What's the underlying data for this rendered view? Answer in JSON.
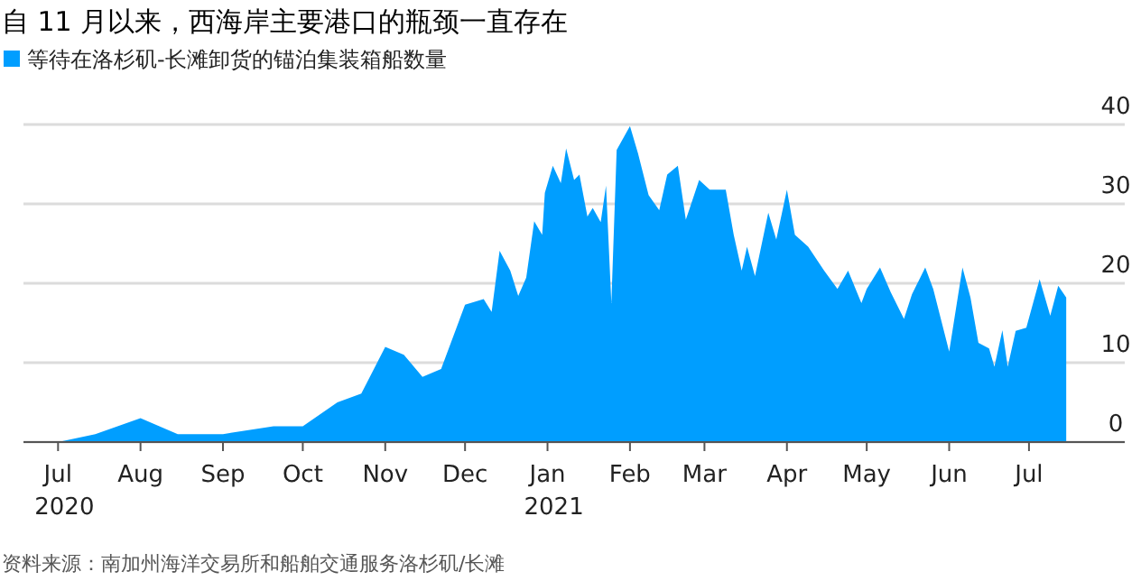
{
  "chart_data": {
    "type": "area",
    "title": "自 11 月以来，西海岸主要港口的瓶颈一直存在",
    "series": [
      {
        "name": "等待在洛杉矶-长滩卸货的锚泊集装箱船数量",
        "color": "#009eff",
        "x": [
          "2020-06-18",
          "2020-07-01",
          "2020-07-15",
          "2020-08-01",
          "2020-08-15",
          "2020-09-01",
          "2020-09-20",
          "2020-10-01",
          "2020-10-14",
          "2020-10-23",
          "2020-11-01",
          "2020-11-08",
          "2020-11-15",
          "2020-11-22",
          "2020-12-01",
          "2020-12-08",
          "2020-12-11",
          "2020-12-14",
          "2020-12-18",
          "2020-12-21",
          "2020-12-24",
          "2020-12-27",
          "2020-12-30",
          "2020-12-31",
          "2021-01-03",
          "2021-01-06",
          "2021-01-08",
          "2021-01-11",
          "2021-01-13",
          "2021-01-16",
          "2021-01-18",
          "2021-01-21",
          "2021-01-23",
          "2021-01-25",
          "2021-01-27",
          "2021-02-01",
          "2021-02-04",
          "2021-02-08",
          "2021-02-12",
          "2021-02-15",
          "2021-02-19",
          "2021-02-22",
          "2021-02-27",
          "2021-03-03",
          "2021-03-09",
          "2021-03-12",
          "2021-03-15",
          "2021-03-17",
          "2021-03-20",
          "2021-03-25",
          "2021-03-28",
          "2021-04-01",
          "2021-04-04",
          "2021-04-09",
          "2021-04-15",
          "2021-04-20",
          "2021-04-24",
          "2021-04-29",
          "2021-05-01",
          "2021-05-06",
          "2021-05-10",
          "2021-05-15",
          "2021-05-18",
          "2021-05-23",
          "2021-05-26",
          "2021-06-01",
          "2021-06-06",
          "2021-06-09",
          "2021-06-12",
          "2021-06-16",
          "2021-06-18",
          "2021-06-21",
          "2021-06-23",
          "2021-06-26",
          "2021-06-30",
          "2021-07-05",
          "2021-07-09",
          "2021-07-12",
          "2021-07-15"
        ],
        "values": [
          0,
          0,
          1.0,
          3.0,
          1.0,
          1.0,
          2.0,
          2.0,
          5.0,
          6.1,
          12.0,
          11.0,
          8.2,
          9.2,
          17.3,
          18.0,
          16.4,
          24.1,
          21.6,
          18.4,
          20.7,
          27.8,
          26.1,
          31.4,
          34.8,
          32.6,
          37.0,
          33.0,
          33.7,
          28.4,
          29.5,
          27.7,
          32.3,
          17.5,
          36.8,
          39.8,
          36.4,
          31.1,
          29.2,
          33.7,
          34.8,
          28.0,
          33.0,
          31.8,
          31.8,
          26.1,
          21.6,
          24.6,
          20.9,
          28.9,
          25.5,
          31.8,
          26.1,
          24.6,
          21.6,
          19.3,
          21.6,
          17.5,
          19.3,
          22.0,
          18.9,
          15.5,
          18.6,
          22.0,
          19.3,
          11.4,
          22.0,
          18.2,
          12.5,
          11.8,
          9.5,
          14.1,
          9.5,
          14.0,
          14.4,
          20.5,
          15.9,
          19.7,
          18.2
        ]
      }
    ],
    "xlim": [
      "2020-06-18",
      "2021-08-06"
    ],
    "xticks": [
      {
        "value": "2020-07-01",
        "label": "Jul\n2020"
      },
      {
        "value": "2020-08-01",
        "label": "Aug"
      },
      {
        "value": "2020-09-01",
        "label": "Sep"
      },
      {
        "value": "2020-10-01",
        "label": "Oct"
      },
      {
        "value": "2020-11-01",
        "label": "Nov"
      },
      {
        "value": "2020-12-01",
        "label": "Dec"
      },
      {
        "value": "2021-01-01",
        "label": "Jan\n2021"
      },
      {
        "value": "2021-02-01",
        "label": "Feb"
      },
      {
        "value": "2021-03-01",
        "label": "Mar"
      },
      {
        "value": "2021-04-01",
        "label": "Apr"
      },
      {
        "value": "2021-05-01",
        "label": "May"
      },
      {
        "value": "2021-06-01",
        "label": "Jun"
      },
      {
        "value": "2021-07-01",
        "label": "Jul"
      }
    ],
    "ylim": [
      0,
      40
    ],
    "yticks": [
      0,
      10,
      20,
      30,
      40
    ],
    "grid": "y",
    "legend": "top left",
    "annotations": [
      "资料来源：南加州海洋交易所和船舶交通服务洛杉矶/长滩"
    ]
  }
}
